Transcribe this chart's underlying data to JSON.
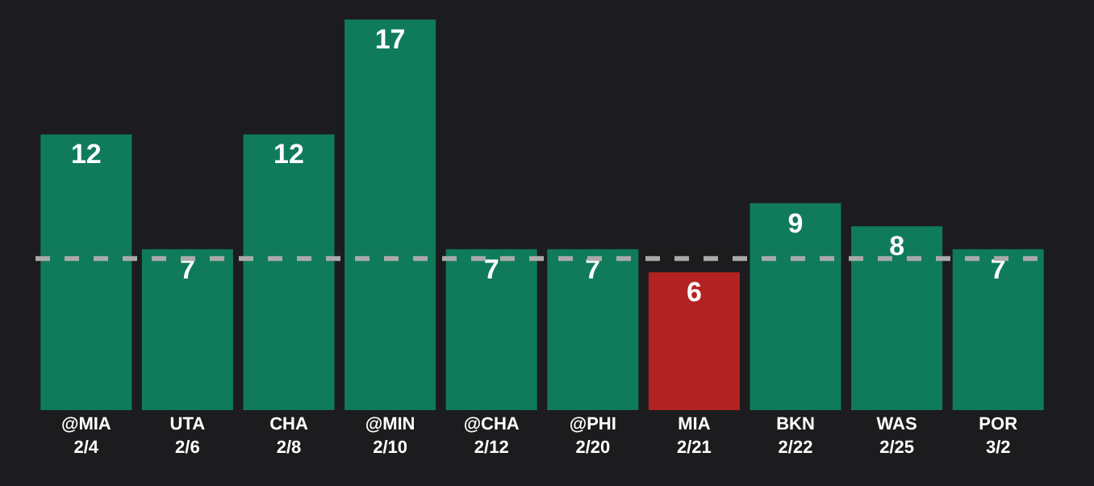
{
  "chart_data": {
    "type": "bar",
    "categories": [
      "@MIA\n2/4",
      "UTA\n2/6",
      "CHA\n2/8",
      "@MIN\n2/10",
      "@CHA\n2/12",
      "@PHI\n2/20",
      "MIA\n2/21",
      "BKN\n2/22",
      "WAS\n2/25",
      "POR\n3/2"
    ],
    "values": [
      12,
      7,
      12,
      17,
      7,
      7,
      6,
      9,
      8,
      7
    ],
    "colors": [
      "#0f7b5a",
      "#0f7b5a",
      "#0f7b5a",
      "#0f7b5a",
      "#0f7b5a",
      "#0f7b5a",
      "#b22222",
      "#0f7b5a",
      "#0f7b5a",
      "#0f7b5a"
    ],
    "ylim": [
      0,
      17.85
    ],
    "tick_labels": "x",
    "data_labels": true,
    "grid": false,
    "ref_lines": [
      {
        "axis": "y",
        "value": 6.6,
        "color": "#aaaaaa",
        "line_style": "dashed"
      }
    ]
  }
}
